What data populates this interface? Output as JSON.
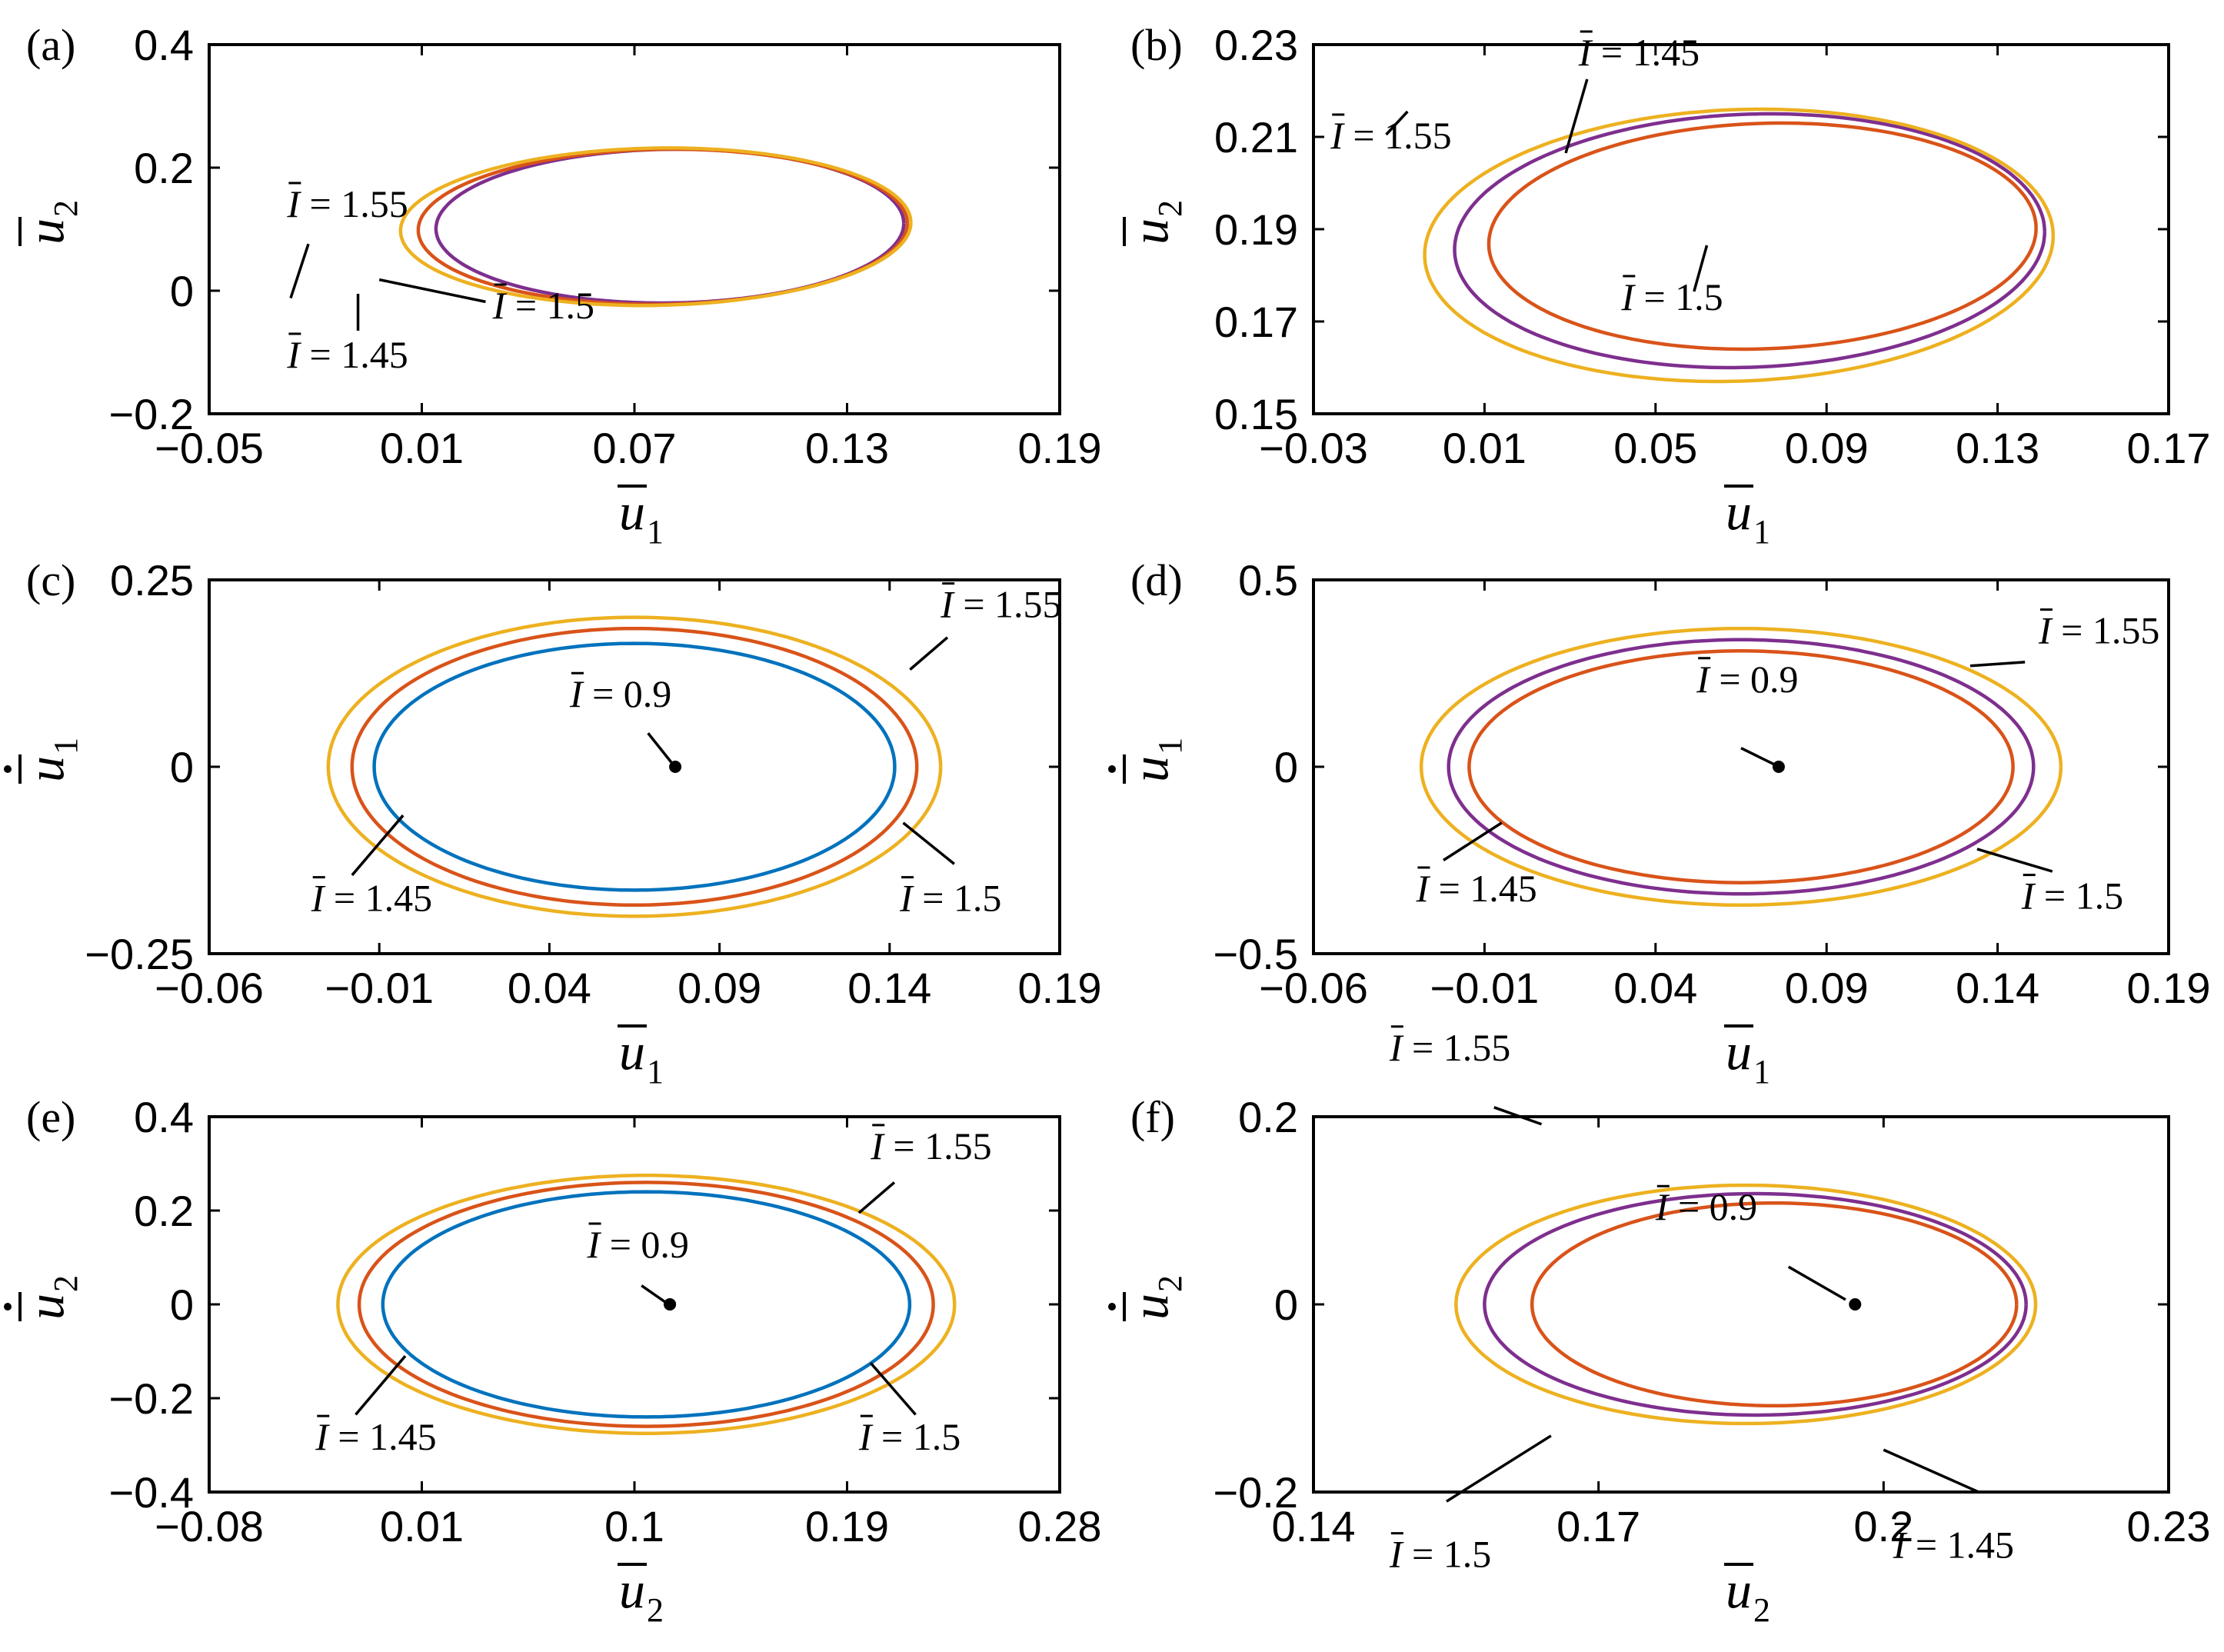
{
  "chart_data": [
    {
      "panel": "(a)",
      "type": "line",
      "xlabel": "u",
      "xlabel_sub": "1",
      "ylabel": "u",
      "ylabel_sub": "2",
      "ylabel_dot": false,
      "xlim": [
        -0.05,
        0.19
      ],
      "ylim": [
        -0.2,
        0.4
      ],
      "xticks": [
        -0.05,
        0.01,
        0.07,
        0.13,
        0.19
      ],
      "xtick_labels": [
        "−0.05",
        "0.01",
        "0.07",
        "0.13",
        "0.19"
      ],
      "yticks": [
        -0.2,
        0,
        0.2,
        0.4
      ],
      "ytick_labels": [
        "−0.2",
        "0",
        "0.2",
        "0.4"
      ],
      "series": [
        {
          "name": "I = 1.45",
          "color": "#7E2F8E",
          "shape": "ellipse",
          "cx": 0.08,
          "cy": 0.105,
          "rx": 0.066,
          "ry": 0.125,
          "phase_deg": 2.0
        },
        {
          "name": "I = 1.5",
          "color": "#D95319",
          "shape": "ellipse",
          "cx": 0.078,
          "cy": 0.104,
          "rx": 0.069,
          "ry": 0.126,
          "phase_deg": 2.5
        },
        {
          "name": "I = 1.55",
          "color": "#EDB120",
          "shape": "ellipse",
          "cx": 0.076,
          "cy": 0.104,
          "rx": 0.072,
          "ry": 0.128,
          "phase_deg": 3.0
        }
      ],
      "annotations": [
        {
          "text_pre": "I",
          "text_post": " = 1.55",
          "at": [
            -0.028,
            0.12
          ],
          "line": [
            [
              -0.022,
              0.076
            ],
            [
              -0.027,
              -0.012
            ]
          ]
        },
        {
          "text_pre": "I",
          "text_post": " = 1.5",
          "at": [
            0.03,
            -0.045
          ],
          "line": [
            [
              0.028,
              -0.018
            ],
            [
              -0.002,
              0.018
            ]
          ]
        },
        {
          "text_pre": "I",
          "text_post": " = 1.45",
          "at": [
            -0.028,
            -0.125
          ],
          "line": [
            [
              -0.008,
              -0.065
            ],
            [
              -0.008,
              -0.005
            ]
          ]
        }
      ],
      "markers": []
    },
    {
      "panel": "(b)",
      "type": "line",
      "xlabel": "u",
      "xlabel_sub": "1",
      "ylabel": "u",
      "ylabel_sub": "2",
      "ylabel_dot": false,
      "xlim": [
        -0.03,
        0.17
      ],
      "ylim": [
        0.15,
        0.23
      ],
      "xticks": [
        -0.03,
        0.01,
        0.05,
        0.09,
        0.13,
        0.17
      ],
      "xtick_labels": [
        "−0.03",
        "0.01",
        "0.05",
        "0.09",
        "0.13",
        "0.17"
      ],
      "yticks": [
        0.15,
        0.17,
        0.19,
        0.21,
        0.23
      ],
      "ytick_labels": [
        "0.15",
        "0.17",
        "0.19",
        "0.21",
        "0.23"
      ],
      "series": [
        {
          "name": "I = 1.45",
          "color": "#D95319",
          "shape": "ellipse",
          "cx": 0.075,
          "cy": 0.1885,
          "rx": 0.064,
          "ry": 0.0245,
          "phase_deg": 176.0
        },
        {
          "name": "I = 1.5",
          "color": "#7E2F8E",
          "shape": "ellipse",
          "cx": 0.072,
          "cy": 0.1875,
          "rx": 0.069,
          "ry": 0.0275,
          "phase_deg": 176.0
        },
        {
          "name": "I = 1.55",
          "color": "#EDB120",
          "shape": "ellipse",
          "cx": 0.0695,
          "cy": 0.1865,
          "rx": 0.0735,
          "ry": 0.0295,
          "phase_deg": 176.0
        }
      ],
      "annotations": [
        {
          "text_pre": "I",
          "text_post": " = 1.45",
          "at": [
            0.032,
            0.2255
          ],
          "line": [
            [
              0.034,
              0.2225
            ],
            [
              0.029,
              0.2065
            ]
          ]
        },
        {
          "text_pre": "I",
          "text_post": " = 1.55",
          "at": [
            -0.026,
            0.2075
          ],
          "line": [
            [
              -0.013,
              0.2105
            ],
            [
              -0.008,
              0.2155
            ]
          ]
        },
        {
          "text_pre": "I",
          "text_post": " = 1.5",
          "at": [
            0.042,
            0.1725
          ],
          "line": [
            [
              0.059,
              0.1765
            ],
            [
              0.062,
              0.1865
            ]
          ]
        }
      ],
      "markers": []
    },
    {
      "panel": "(c)",
      "type": "line",
      "xlabel": "u",
      "xlabel_sub": "1",
      "ylabel": "u",
      "ylabel_sub": "1",
      "ylabel_dot": true,
      "xlim": [
        -0.06,
        0.19
      ],
      "ylim": [
        -0.25,
        0.25
      ],
      "xticks": [
        -0.06,
        -0.01,
        0.04,
        0.09,
        0.14,
        0.19
      ],
      "xtick_labels": [
        "−0.06",
        "−0.01",
        "0.04",
        "0.09",
        "0.14",
        "0.19"
      ],
      "yticks": [
        -0.25,
        0,
        0.25
      ],
      "ytick_labels": [
        "−0.25",
        "0",
        "0.25"
      ],
      "series": [
        {
          "name": "I = 1.45",
          "color": "#0072BD",
          "shape": "ellipse",
          "cx": 0.065,
          "cy": 0,
          "rx": 0.0765,
          "ry": 0.165,
          "phase_deg": 0
        },
        {
          "name": "I = 1.5",
          "color": "#D95319",
          "shape": "ellipse",
          "cx": 0.065,
          "cy": 0,
          "rx": 0.083,
          "ry": 0.185,
          "phase_deg": 0
        },
        {
          "name": "I = 1.55",
          "color": "#EDB120",
          "shape": "ellipse",
          "cx": 0.065,
          "cy": 0,
          "rx": 0.09,
          "ry": 0.2,
          "phase_deg": 0
        }
      ],
      "annotations": [
        {
          "text_pre": "I",
          "text_post": " = 1.55",
          "at": [
            0.155,
            0.2
          ],
          "line": [
            [
              0.157,
              0.173
            ],
            [
              0.146,
              0.13
            ]
          ]
        },
        {
          "text_pre": "I",
          "text_post": " = 0.9",
          "at": [
            0.046,
            0.08
          ],
          "line": [
            [
              0.069,
              0.045
            ],
            [
              0.076,
              0.005
            ]
          ]
        },
        {
          "text_pre": "I",
          "text_post": " = 1.45",
          "at": [
            -0.03,
            -0.193
          ],
          "line": [
            [
              -0.018,
              -0.145
            ],
            [
              -0.003,
              -0.065
            ]
          ]
        },
        {
          "text_pre": "I",
          "text_post": " = 1.5",
          "at": [
            0.143,
            -0.193
          ],
          "line": [
            [
              0.159,
              -0.13
            ],
            [
              0.144,
              -0.075
            ]
          ]
        }
      ],
      "markers": [
        {
          "label": "I = 0.9",
          "x": 0.077,
          "y": 0
        }
      ]
    },
    {
      "panel": "(d)",
      "type": "line",
      "xlabel": "u",
      "xlabel_sub": "1",
      "ylabel": "u",
      "ylabel_sub": "1",
      "ylabel_dot": true,
      "xlim": [
        -0.06,
        0.19
      ],
      "ylim": [
        -0.5,
        0.5
      ],
      "xticks": [
        -0.06,
        -0.01,
        0.04,
        0.09,
        0.14,
        0.19
      ],
      "xtick_labels": [
        "−0.06",
        "−0.01",
        "0.04",
        "0.09",
        "0.14",
        "0.19"
      ],
      "yticks": [
        -0.5,
        0,
        0.5
      ],
      "ytick_labels": [
        "−0.5",
        "0",
        "0.5"
      ],
      "series": [
        {
          "name": "I = 1.45",
          "color": "#D95319",
          "shape": "ellipse",
          "cx": 0.065,
          "cy": 0,
          "rx": 0.0795,
          "ry": 0.31,
          "phase_deg": 0
        },
        {
          "name": "I = 1.5",
          "color": "#7E2F8E",
          "shape": "ellipse",
          "cx": 0.065,
          "cy": 0,
          "rx": 0.0855,
          "ry": 0.34,
          "phase_deg": 0
        },
        {
          "name": "I = 1.55",
          "color": "#EDB120",
          "shape": "ellipse",
          "cx": 0.065,
          "cy": 0,
          "rx": 0.0935,
          "ry": 0.37,
          "phase_deg": 0
        }
      ],
      "annotations": [
        {
          "text_pre": "I",
          "text_post": " = 1.55",
          "at": [
            0.152,
            0.33
          ],
          "line": [
            [
              0.148,
              0.28
            ],
            [
              0.132,
              0.27
            ]
          ]
        },
        {
          "text_pre": "I",
          "text_post": " = 0.9",
          "at": [
            0.052,
            0.2
          ],
          "line": [
            [
              0.065,
              0.05
            ],
            [
              0.075,
              0.005
            ]
          ]
        },
        {
          "text_pre": "I",
          "text_post": " = 1.45",
          "at": [
            -0.03,
            -0.36
          ],
          "line": [
            [
              -0.022,
              -0.25
            ],
            [
              -0.005,
              -0.15
            ]
          ]
        },
        {
          "text_pre": "I",
          "text_post": " = 1.5",
          "at": [
            0.147,
            -0.38
          ],
          "line": [
            [
              0.156,
              -0.28
            ],
            [
              0.134,
              -0.22
            ]
          ]
        }
      ],
      "markers": [
        {
          "label": "I = 0.9",
          "x": 0.076,
          "y": 0
        }
      ]
    },
    {
      "panel": "(e)",
      "type": "line",
      "xlabel": "u",
      "xlabel_sub": "2",
      "ylabel": "u",
      "ylabel_sub": "2",
      "ylabel_dot": true,
      "xlim": [
        -0.08,
        0.28
      ],
      "ylim": [
        -0.4,
        0.4
      ],
      "xticks": [
        -0.08,
        0.01,
        0.1,
        0.19,
        0.28
      ],
      "xtick_labels": [
        "−0.08",
        "0.01",
        "0.1",
        "0.19",
        "0.28"
      ],
      "yticks": [
        -0.4,
        -0.2,
        0,
        0.2,
        0.4
      ],
      "ytick_labels": [
        "−0.4",
        "−0.2",
        "0",
        "0.2",
        "0.4"
      ],
      "series": [
        {
          "name": "I = 1.45",
          "color": "#0072BD",
          "shape": "ellipse",
          "cx": 0.105,
          "cy": 0,
          "rx": 0.1115,
          "ry": 0.24,
          "phase_deg": 0
        },
        {
          "name": "I = 1.5",
          "color": "#D95319",
          "shape": "ellipse",
          "cx": 0.105,
          "cy": 0,
          "rx": 0.1215,
          "ry": 0.26,
          "phase_deg": 0
        },
        {
          "name": "I = 1.55",
          "color": "#EDB120",
          "shape": "ellipse",
          "cx": 0.105,
          "cy": 0,
          "rx": 0.1305,
          "ry": 0.275,
          "phase_deg": 0
        },
        {
          "name": "I = 0.9",
          "color": "#000000",
          "shape": "point",
          "cx": 0.115,
          "cy": 0,
          "rx": 0,
          "ry": 0,
          "phase_deg": 0
        }
      ],
      "annotations": [
        {
          "text_pre": "I",
          "text_post": " = 1.55",
          "at": [
            0.2,
            0.31
          ],
          "line": [
            [
              0.21,
              0.26
            ],
            [
              0.195,
              0.195
            ]
          ]
        },
        {
          "text_pre": "I",
          "text_post": " = 0.9",
          "at": [
            0.08,
            0.1
          ],
          "line": [
            [
              0.103,
              0.04
            ],
            [
              0.113,
              0.005
            ]
          ]
        },
        {
          "text_pre": "I",
          "text_post": " = 1.45",
          "at": [
            -0.035,
            -0.31
          ],
          "line": [
            [
              -0.018,
              -0.235
            ],
            [
              0.003,
              -0.11
            ]
          ]
        },
        {
          "text_pre": "I",
          "text_post": " = 1.5",
          "at": [
            0.195,
            -0.31
          ],
          "line": [
            [
              0.219,
              -0.235
            ],
            [
              0.2,
              -0.125
            ]
          ]
        }
      ],
      "markers": [
        {
          "label": "I = 0.9",
          "x": 0.115,
          "y": 0
        }
      ]
    },
    {
      "panel": "(f)",
      "type": "line",
      "xlabel": "u",
      "xlabel_sub": "2",
      "ylabel": "u",
      "ylabel_sub": "2",
      "ylabel_dot": true,
      "xlim": [
        0.14,
        0.23
      ],
      "ylim": [
        -0.2,
        0.2
      ],
      "xticks": [
        0.14,
        0.17,
        0.2,
        0.23
      ],
      "xtick_labels": [
        "0.14",
        "0.17",
        "0.2",
        "0.23"
      ],
      "yticks": [
        -0.2,
        0,
        0.2
      ],
      "ytick_labels": [
        "−0.2",
        "0",
        "0.2"
      ],
      "series": [
        {
          "name": "I = 1.45",
          "color": "#D95319",
          "shape": "ellipse",
          "cx": 0.1885,
          "cy": 0,
          "rx": 0.0255,
          "ry": 0.108,
          "phase_deg": 0
        },
        {
          "name": "I = 1.5",
          "color": "#7E2F8E",
          "shape": "ellipse",
          "cx": 0.1865,
          "cy": 0,
          "rx": 0.0285,
          "ry": 0.118,
          "phase_deg": 0
        },
        {
          "name": "I = 1.55",
          "color": "#EDB120",
          "shape": "ellipse",
          "cx": 0.1855,
          "cy": 0,
          "rx": 0.0305,
          "ry": 0.127,
          "phase_deg": 0
        }
      ],
      "annotations": [
        {
          "text_pre": "I",
          "text_post": " = 1.55",
          "at": [
            0.148,
            0.26
          ],
          "line": [
            [
              0.159,
              0.21
            ],
            [
              0.164,
              0.192
            ]
          ]
        },
        {
          "text_pre": "I",
          "text_post": " = 0.9",
          "at": [
            0.176,
            0.09
          ],
          "line": [
            [
              0.19,
              0.04
            ],
            [
              0.196,
              0.005
            ]
          ]
        },
        {
          "text_pre": "I",
          "text_post": " = 1.5",
          "at": [
            0.148,
            -0.28
          ],
          "line": [
            [
              0.154,
              -0.21
            ],
            [
              0.165,
              -0.14
            ]
          ]
        },
        {
          "text_pre": "I",
          "text_post": " = 1.45",
          "at": [
            0.201,
            -0.27
          ],
          "line": [
            [
              0.21,
              -0.2
            ],
            [
              0.2,
              -0.155
            ]
          ]
        }
      ],
      "markers": [
        {
          "label": "I = 0.9",
          "x": 0.197,
          "y": 0
        }
      ]
    }
  ]
}
